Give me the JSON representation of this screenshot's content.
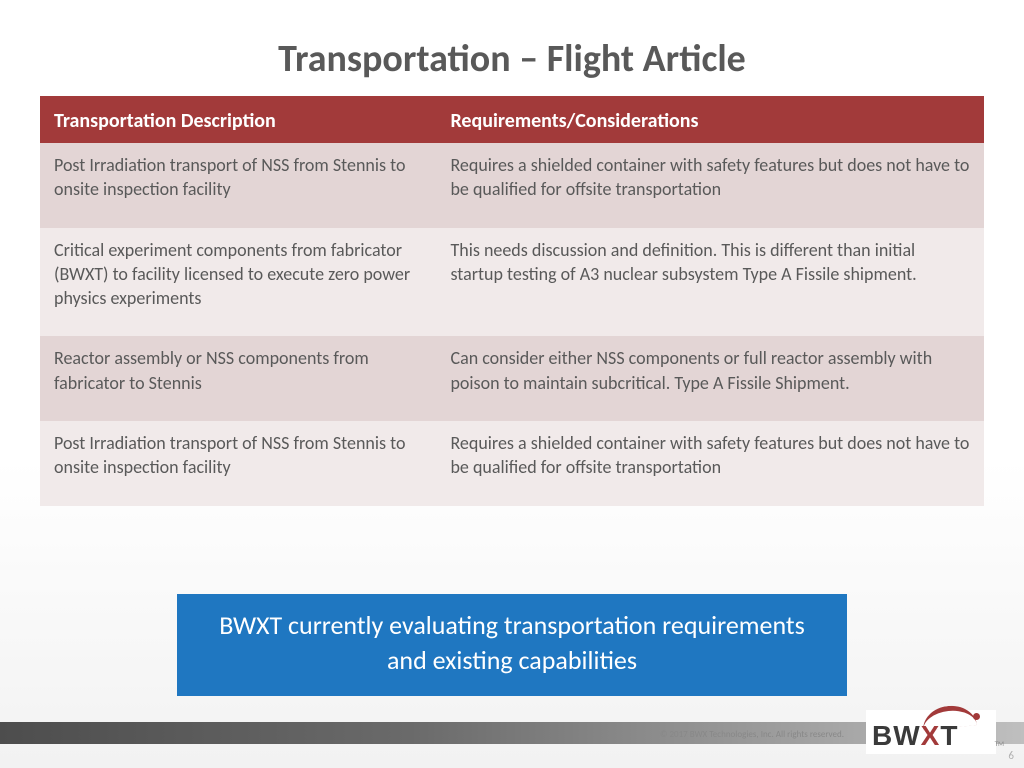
{
  "title": "Transportation – Flight Article",
  "table": {
    "columns": [
      "Transportation Description",
      "Requirements/Considerations"
    ],
    "column_widths_pct": [
      42,
      58
    ],
    "header_bg": "#a23a3a",
    "header_color": "#ffffff",
    "row_bg_a": "#e3d5d5",
    "row_bg_b": "#f1eaea",
    "cell_color": "#595959",
    "header_fontsize": 20,
    "cell_fontsize": 18,
    "rows": [
      [
        "Post Irradiation transport of NSS from Stennis to onsite inspection facility",
        "Requires a shielded container with safety features but does not have to be qualified for offsite transportation"
      ],
      [
        "Critical experiment components from fabricator (BWXT) to facility licensed to execute zero power physics experiments",
        "This needs discussion and definition. This is different than initial startup testing of A3 nuclear subsystem Type A Fissile shipment."
      ],
      [
        "Reactor assembly or NSS components from fabricator to Stennis",
        "Can consider either NSS components or full reactor assembly with poison to maintain subcritical. Type A Fissile Shipment."
      ],
      [
        "Post Irradiation transport of NSS from Stennis to onsite inspection facility",
        "Requires a shielded container with safety features but does not have to be qualified for offsite transportation"
      ]
    ]
  },
  "callout": {
    "text": "BWXT currently evaluating transportation requirements and existing capabilities",
    "bg": "#1f77c1",
    "color": "#ffffff",
    "fontsize": 26
  },
  "footer": {
    "copyright": "© 2017 BWX Technologies, Inc. All rights reserved.",
    "page_number": "6",
    "logo_text_parts": {
      "pre": "BW",
      "x": "X",
      "post": "T"
    },
    "logo_tm": "TM"
  },
  "colors": {
    "title": "#595959",
    "title_rule": "#a23a3a",
    "bg_gradient_from": "#ffffff",
    "bg_gradient_to": "#f2f2f2",
    "footer_gradient_from": "#4d4d4d",
    "footer_gradient_to": "#bfbfbf"
  },
  "fonts": {
    "title_size": 38,
    "title_weight": 700
  }
}
